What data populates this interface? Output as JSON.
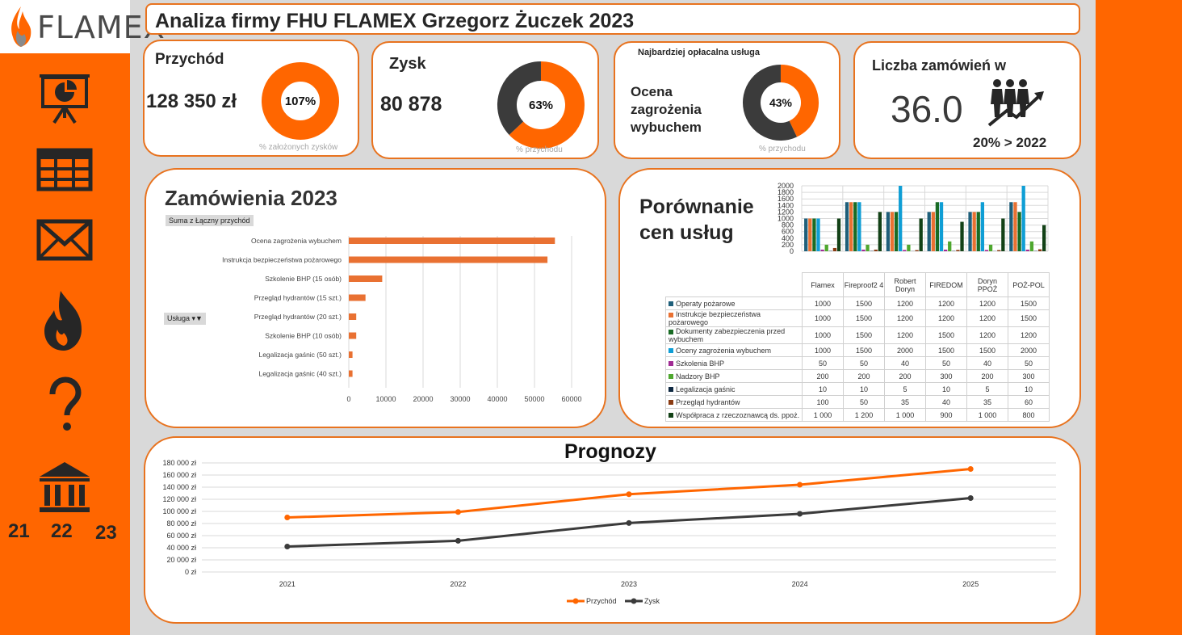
{
  "logo": {
    "text": "FLAMEX"
  },
  "title": "Analiza firmy FHU FLAMEX Grzegorz Żuczek 2023",
  "sidebar": {
    "icons": [
      "presentation-chart-icon",
      "table-icon",
      "envelope-icon",
      "flame-icon",
      "question-icon",
      "bank-icon"
    ],
    "years": [
      "21",
      "22",
      "23"
    ]
  },
  "kpi": {
    "revenue": {
      "title": "Przychód",
      "value": "128 350 zł",
      "pct": "107%",
      "pct_value": 1.07,
      "caption": "% założonych zysków"
    },
    "profit": {
      "title": "Zysk",
      "value": "80 878",
      "pct": "63%",
      "pct_value": 0.63,
      "caption": "% przychodu"
    },
    "best": {
      "title": "Najbardziej opłacalna usługa",
      "service": "Ocena zagrożenia wybuchem",
      "pct": "43%",
      "pct_value": 0.43,
      "caption": "% przychodu"
    },
    "orders": {
      "title": "Liczba zamówień w",
      "value": "36.0",
      "delta": "20% > 2022"
    }
  },
  "colors": {
    "orange": "#ff6600",
    "dark": "#3b3b3b",
    "accent": "#e8731f"
  },
  "orders_chart": {
    "title": "Zamówienia 2023",
    "field_button": "Suma z Łączny przychód",
    "filter_button": "Usługa"
  },
  "prices": {
    "title": "Porównanie cen usług",
    "companies": [
      "Flamex",
      "Fireproof2 4",
      "Robert Doryn",
      "FIREDOM",
      "Doryn PPOŻ",
      "POŻ-POL"
    ]
  },
  "forecast": {
    "title": "Prognozy"
  },
  "chart_data": [
    {
      "type": "bar",
      "orientation": "horizontal",
      "categories": [
        "Ocena zagrożenia wybuchem",
        "Instrukcja bezpieczeństwa pożarowego",
        "Szkolenie BHP (15 osób)",
        "Przegląd hydrantów (15 szt.)",
        "Przegląd hydrantów (20 szt.)",
        "Szkolenie BHP (10 osób)",
        "Legalizacja gaśnic (50 szt.)",
        "Legalizacja gaśnic (40 szt.)"
      ],
      "values": [
        55500,
        53500,
        9000,
        4500,
        2000,
        2000,
        1000,
        1000
      ],
      "xlim": [
        0,
        60000
      ],
      "xticks": [
        "0",
        "10000",
        "20000",
        "30000",
        "40000",
        "50000",
        "60000"
      ],
      "color": "#e97132"
    },
    {
      "type": "bar",
      "categories": [
        "Flamex",
        "Fireproof2 4",
        "Robert Doryn",
        "FIREDOM",
        "Doryn PPOŻ",
        "POŻ-POL"
      ],
      "ylim": [
        0,
        2000
      ],
      "yticks": [
        "0",
        "200",
        "400",
        "600",
        "800",
        "1000",
        "1200",
        "1400",
        "1600",
        "1800",
        "2000"
      ],
      "series": [
        {
          "name": "Operaty pożarowe",
          "color": "#1f5f7a",
          "values": [
            1000,
            1500,
            1200,
            1200,
            1200,
            1500
          ],
          "labels": [
            "1000",
            "1500",
            "1200",
            "1200",
            "1200",
            "1500"
          ]
        },
        {
          "name": "Instrukcje bezpieczeństwa pożarowego",
          "color": "#e97132",
          "values": [
            1000,
            1500,
            1200,
            1200,
            1200,
            1500
          ],
          "labels": [
            "1000",
            "1500",
            "1200",
            "1200",
            "1200",
            "1500"
          ]
        },
        {
          "name": "Dokumenty zabezpieczenia przed wybuchem",
          "color": "#196b24",
          "values": [
            1000,
            1500,
            1200,
            1500,
            1200,
            1200
          ],
          "labels": [
            "1000",
            "1500",
            "1200",
            "1500",
            "1200",
            "1200"
          ]
        },
        {
          "name": "Oceny zagrożenia wybuchem",
          "color": "#0f9ed5",
          "values": [
            1000,
            1500,
            2000,
            1500,
            1500,
            2000
          ],
          "labels": [
            "1000",
            "1500",
            "2000",
            "1500",
            "1500",
            "2000"
          ]
        },
        {
          "name": "Szkolenia BHP",
          "color": "#a02b93",
          "values": [
            50,
            50,
            40,
            50,
            40,
            50
          ],
          "labels": [
            "50",
            "50",
            "40",
            "50",
            "40",
            "50"
          ]
        },
        {
          "name": "Nadzory BHP",
          "color": "#4ea72e",
          "values": [
            200,
            200,
            200,
            300,
            200,
            300
          ],
          "labels": [
            "200",
            "200",
            "200",
            "300",
            "200",
            "300"
          ]
        },
        {
          "name": "Legalizacja gaśnic",
          "color": "#0e2841",
          "values": [
            10,
            10,
            5,
            10,
            5,
            10
          ],
          "labels": [
            "10",
            "10",
            "5",
            "10",
            "5",
            "10"
          ]
        },
        {
          "name": "Przegląd hydrantów",
          "color": "#8a3b12",
          "values": [
            100,
            50,
            35,
            40,
            35,
            60
          ],
          "labels": [
            "100",
            "50",
            "35",
            "40",
            "35",
            "60"
          ]
        },
        {
          "name": "Współpraca z rzeczoznawcą ds. ppoż.",
          "color": "#124116",
          "values": [
            1000,
            1200,
            1000,
            900,
            1000,
            800
          ],
          "labels": [
            "1 000",
            "1 200",
            "1 000",
            "900",
            "1 000",
            "800"
          ]
        }
      ]
    },
    {
      "type": "line",
      "x": [
        "2021",
        "2022",
        "2023",
        "2024",
        "2025"
      ],
      "ylim": [
        0,
        180000
      ],
      "yticks": [
        "0 zł",
        "20 000 zł",
        "40 000 zł",
        "60 000 zł",
        "80 000 zł",
        "100 000 zł",
        "120 000 zł",
        "140 000 zł",
        "160 000 zł",
        "180 000 zł"
      ],
      "series": [
        {
          "name": "Przychód",
          "color": "#ff6600",
          "values": [
            90000,
            99000,
            128350,
            144000,
            170000
          ]
        },
        {
          "name": "Zysk",
          "color": "#3b3b3b",
          "values": [
            42000,
            51500,
            80878,
            96000,
            122000
          ]
        }
      ]
    }
  ]
}
